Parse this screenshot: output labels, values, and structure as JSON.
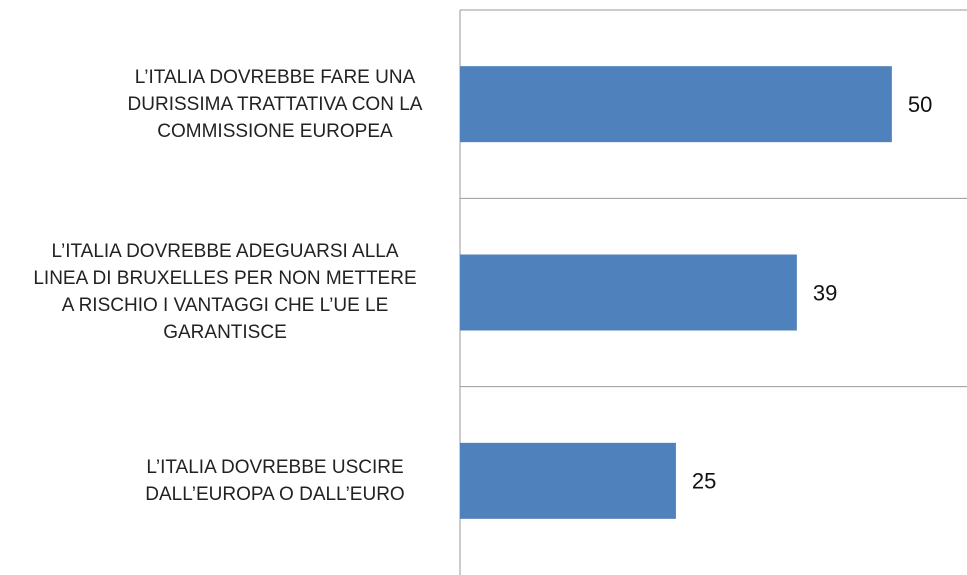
{
  "chart_data": {
    "type": "bar",
    "orientation": "horizontal",
    "categories": [
      "L’ITALIA DOVREBBE FARE UNA DURISSIMA TRATTATIVA CON LA COMMISSIONE EUROPEA",
      "L’ITALIA DOVREBBE ADEGUARSI ALLA LINEA DI BRUXELLES PER NON METTERE A RISCHIO I VANTAGGI CHE L’UE LE GARANTISCE",
      "L’ITALIA DOVREBBE USCIRE DALL’EUROPA O DALL’EURO"
    ],
    "values": [
      50,
      39,
      25
    ],
    "color": "#4f81bd",
    "xlim": [
      0,
      58.7
    ]
  }
}
